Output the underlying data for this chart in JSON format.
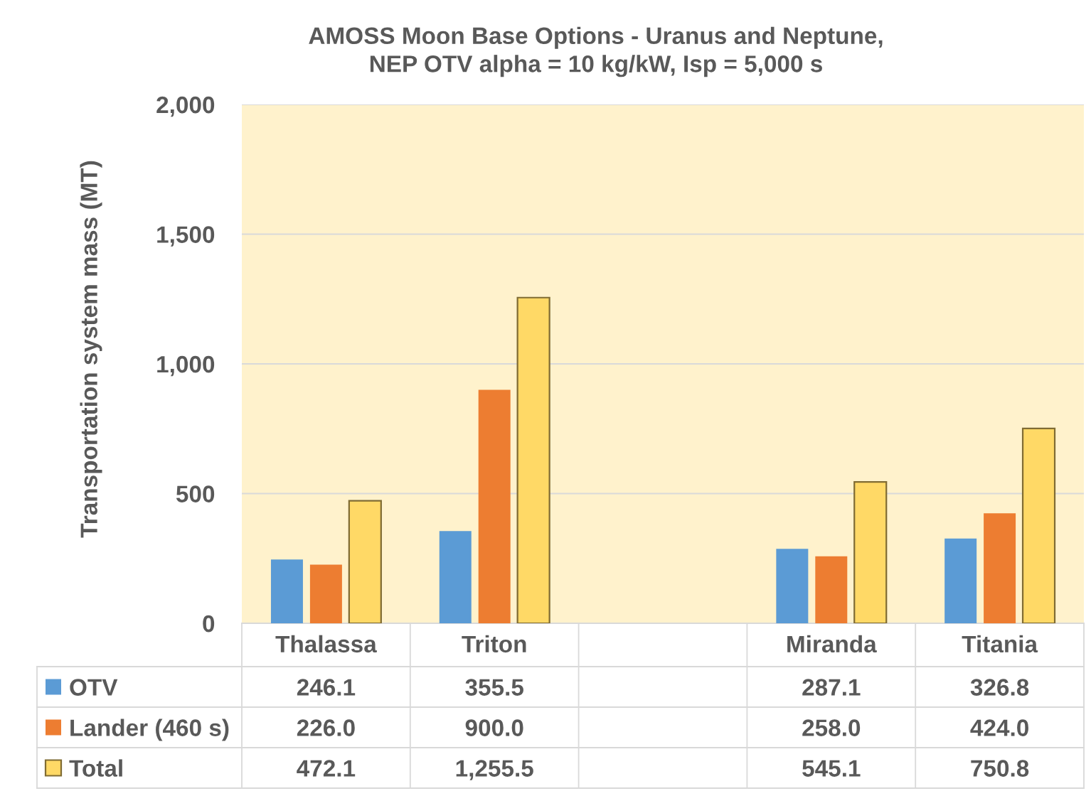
{
  "chart_data": {
    "type": "bar",
    "title": "AMOSS Moon Base Options - Uranus and Neptune,\nNEP OTV alpha = 10 kg/kW, Isp = 5,000 s",
    "ylabel": "Transportation system mass (MT)",
    "categories": [
      "Thalassa",
      "Triton",
      null,
      "Miranda",
      "Titania"
    ],
    "series": [
      {
        "name": "OTV",
        "color": "#5B9BD5",
        "values": [
          246.1,
          355.5,
          null,
          287.1,
          326.8
        ],
        "value_labels": [
          "246.1",
          "355.5",
          null,
          "287.1",
          "326.8"
        ]
      },
      {
        "name": "Lander (460 s)",
        "color": "#ED7D31",
        "values": [
          226.0,
          900.0,
          null,
          258.0,
          424.0
        ],
        "value_labels": [
          "226.0",
          "900.0",
          null,
          "258.0",
          "424.0"
        ]
      },
      {
        "name": "Total",
        "color": "#FFD966",
        "values": [
          472.1,
          1255.5,
          null,
          545.1,
          750.8
        ],
        "value_labels": [
          "472.1",
          "1,255.5",
          null,
          "545.1",
          "750.8"
        ]
      }
    ],
    "ylim": [
      0,
      2000
    ],
    "yticks": [
      0,
      500,
      {
        "value": 1000,
        "label": "1,000"
      },
      {
        "value": 1500,
        "label": "1,500"
      },
      {
        "value": 2000,
        "label": "2,000"
      }
    ],
    "grid": "y",
    "legend": "bottom"
  }
}
